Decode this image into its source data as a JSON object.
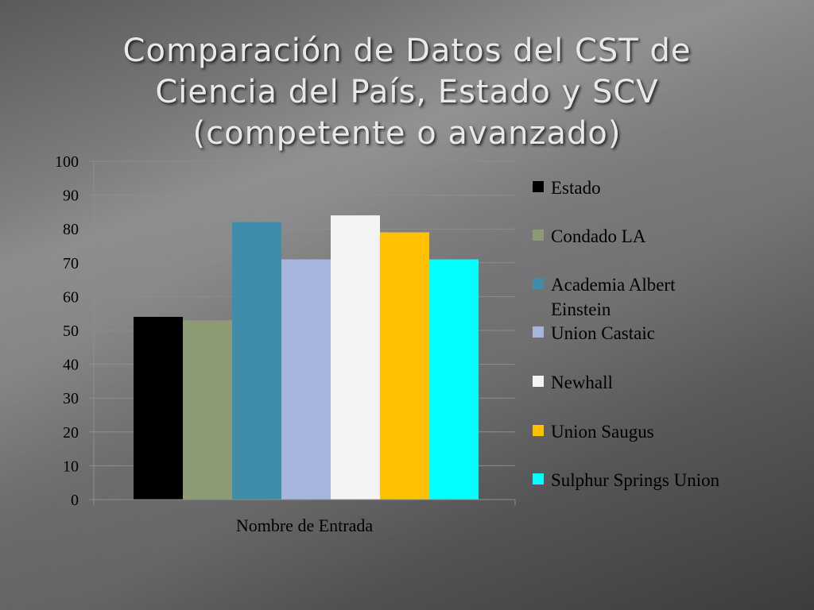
{
  "slide": {
    "title_lines": [
      "Comparación de Datos del CST de",
      "Ciencia del País, Estado y SCV",
      "(competente o avanzado)"
    ]
  },
  "chart_data": {
    "type": "bar",
    "title": "",
    "categories": [
      "Nombre de Entrada"
    ],
    "series": [
      {
        "name": "Estado",
        "values": [
          54
        ],
        "color": "#000000"
      },
      {
        "name": "Condado LA",
        "values": [
          53
        ],
        "color": "#8c9a75"
      },
      {
        "name": "Academia Albert Einstein",
        "values": [
          82
        ],
        "color": "#3f8ea9"
      },
      {
        "name": "Union Castaic",
        "values": [
          71
        ],
        "color": "#a6b5de"
      },
      {
        "name": "Newhall",
        "values": [
          84
        ],
        "color": "#f4f4f4"
      },
      {
        "name": "Union Saugus",
        "values": [
          79
        ],
        "color": "#ffc000"
      },
      {
        "name": "Sulphur Springs Union",
        "values": [
          71
        ],
        "color": "#00ffff"
      }
    ],
    "legend_lines": [
      [
        "Estado"
      ],
      [
        "Condado LA"
      ],
      [
        "Academia Albert",
        "Einstein"
      ],
      [
        "Union Castaic"
      ],
      [
        "Newhall"
      ],
      [
        "Union Saugus"
      ],
      [
        "Sulphur Springs Union"
      ]
    ],
    "xlabel": "",
    "ylabel": "",
    "ylim": [
      0,
      100
    ],
    "yticks": [
      "0",
      "10",
      "20",
      "30",
      "40",
      "50",
      "60",
      "70",
      "80",
      "90",
      "100"
    ],
    "grid": true,
    "legend_position": "right"
  }
}
